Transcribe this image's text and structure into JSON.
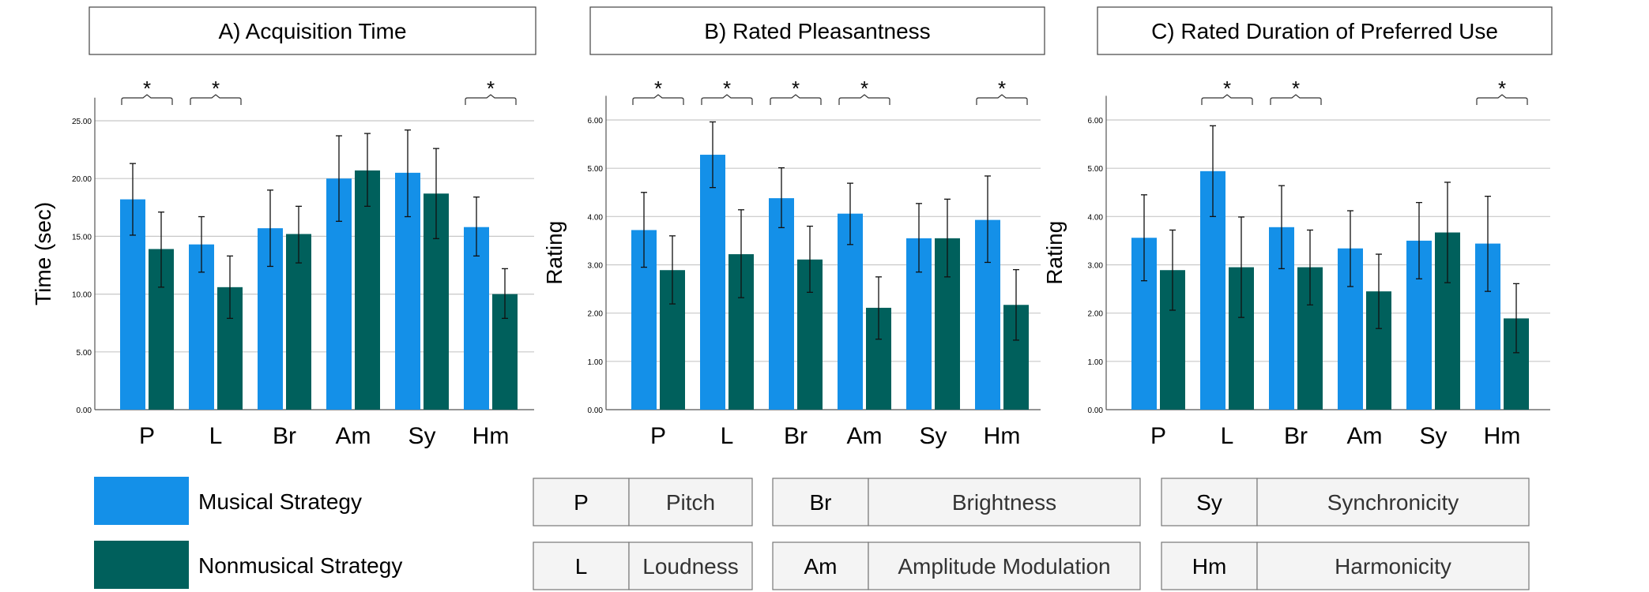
{
  "chart_data": [
    {
      "type": "bar",
      "title": "A) Acquisition Time",
      "ylabel": "Time (sec)",
      "ylim": [
        0,
        27
      ],
      "yticks": [
        0,
        5,
        10,
        15,
        20,
        25
      ],
      "yticks_text": [
        "0.00",
        "5.00",
        "10.00",
        "15.00",
        "20.00",
        "25.00"
      ],
      "grid": true,
      "categories": [
        "P",
        "L",
        "Br",
        "Am",
        "Sy",
        "Hm"
      ],
      "series": [
        {
          "name": "Musical Strategy",
          "values": [
            18.2,
            14.3,
            15.7,
            20.0,
            20.5,
            15.8
          ],
          "err_low": [
            15.1,
            11.9,
            12.4,
            16.3,
            16.7,
            13.3
          ],
          "err_high": [
            21.3,
            16.7,
            19.0,
            23.7,
            24.2,
            18.4
          ]
        },
        {
          "name": "Nonmusical Strategy",
          "values": [
            13.9,
            10.6,
            15.2,
            20.7,
            18.7,
            10.0
          ],
          "err_low": [
            10.6,
            7.9,
            12.7,
            17.6,
            14.8,
            7.9
          ],
          "err_high": [
            17.1,
            13.3,
            17.6,
            23.9,
            22.6,
            12.2
          ]
        }
      ],
      "significance": {
        "marker": "*",
        "categories": [
          "P",
          "L",
          "Hm"
        ]
      }
    },
    {
      "type": "bar",
      "title": "B) Rated Pleasantness",
      "ylabel": "Rating",
      "ylim": [
        0,
        6.5
      ],
      "yticks": [
        0,
        1,
        2,
        3,
        4,
        5,
        6
      ],
      "yticks_text": [
        "0.00",
        "1.00",
        "2.00",
        "3.00",
        "4.00",
        "5.00",
        "6.00"
      ],
      "grid": true,
      "categories": [
        "P",
        "L",
        "Br",
        "Am",
        "Sy",
        "Hm"
      ],
      "series": [
        {
          "name": "Musical Strategy",
          "values": [
            3.72,
            5.28,
            4.38,
            4.06,
            3.55,
            3.93
          ],
          "err_low": [
            2.95,
            4.6,
            3.77,
            3.42,
            2.85,
            3.05
          ],
          "err_high": [
            4.5,
            5.96,
            5.01,
            4.69,
            4.27,
            4.84
          ]
        },
        {
          "name": "Nonmusical Strategy",
          "values": [
            2.89,
            3.22,
            3.11,
            2.11,
            3.55,
            2.17
          ],
          "err_low": [
            2.19,
            2.32,
            2.43,
            1.46,
            2.75,
            1.44
          ],
          "err_high": [
            3.6,
            4.14,
            3.8,
            2.75,
            4.36,
            2.9
          ]
        }
      ],
      "significance": {
        "marker": "*",
        "categories": [
          "P",
          "L",
          "Br",
          "Am",
          "Hm"
        ]
      }
    },
    {
      "type": "bar",
      "title": "C) Rated Duration of Preferred Use",
      "ylabel": "Rating",
      "ylim": [
        0,
        6.5
      ],
      "yticks": [
        0,
        1,
        2,
        3,
        4,
        5,
        6
      ],
      "yticks_text": [
        "0.00",
        "1.00",
        "2.00",
        "3.00",
        "4.00",
        "5.00",
        "6.00"
      ],
      "grid": true,
      "categories": [
        "P",
        "L",
        "Br",
        "Am",
        "Sy",
        "Hm"
      ],
      "series": [
        {
          "name": "Musical Strategy",
          "values": [
            3.56,
            4.94,
            3.78,
            3.34,
            3.5,
            3.44
          ],
          "err_low": [
            2.67,
            4.0,
            2.92,
            2.55,
            2.71,
            2.45
          ],
          "err_high": [
            4.45,
            5.88,
            4.64,
            4.12,
            4.29,
            4.42
          ]
        },
        {
          "name": "Nonmusical Strategy",
          "values": [
            2.89,
            2.95,
            2.95,
            2.45,
            3.67,
            1.89
          ],
          "err_low": [
            2.06,
            1.91,
            2.17,
            1.68,
            2.63,
            1.18
          ],
          "err_high": [
            3.72,
            3.99,
            3.72,
            3.22,
            4.71,
            2.61
          ]
        }
      ],
      "significance": {
        "marker": "*",
        "categories": [
          "L",
          "Br",
          "Hm"
        ]
      }
    }
  ],
  "legend": [
    {
      "label": "Musical Strategy",
      "color": "#1490e8"
    },
    {
      "label": "Nonmusical Strategy",
      "color": "#00605c"
    }
  ],
  "key_table": [
    [
      {
        "abbr": "P",
        "name": "Pitch"
      },
      {
        "abbr": "L",
        "name": "Loudness"
      }
    ],
    [
      {
        "abbr": "Br",
        "name": "Brightness"
      },
      {
        "abbr": "Am",
        "name": "Amplitude Modulation"
      }
    ],
    [
      {
        "abbr": "Sy",
        "name": "Synchronicity"
      },
      {
        "abbr": "Hm",
        "name": "Harmonicity"
      }
    ]
  ]
}
